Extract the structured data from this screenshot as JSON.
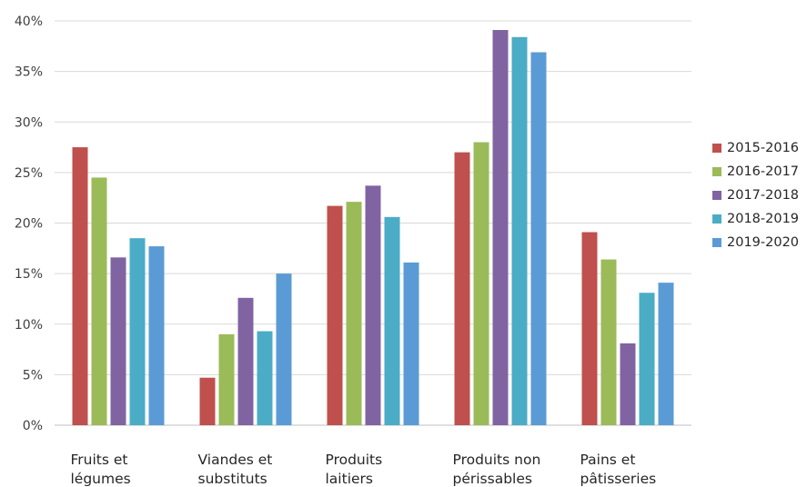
{
  "chart_data": {
    "type": "bar",
    "categories": [
      [
        "Fruits et",
        "légumes"
      ],
      [
        "Viandes et",
        "substituts"
      ],
      [
        "Produits",
        "laitiers"
      ],
      [
        "Produits non",
        "périssables"
      ],
      [
        "Pains et",
        "pâtisseries"
      ]
    ],
    "series": [
      {
        "name": "2015-2016",
        "color": "#c0504d",
        "values": [
          27.5,
          4.7,
          21.7,
          27.0,
          19.1
        ]
      },
      {
        "name": "2016-2017",
        "color": "#9bbb59",
        "values": [
          24.5,
          9.0,
          22.1,
          28.0,
          16.4
        ]
      },
      {
        "name": "2017-2018",
        "color": "#8064a2",
        "values": [
          16.6,
          12.6,
          23.7,
          39.1,
          8.1
        ]
      },
      {
        "name": "2018-2019",
        "color": "#4bacc6",
        "values": [
          18.5,
          9.3,
          20.6,
          38.4,
          13.1
        ]
      },
      {
        "name": "2019-2020",
        "color": "#5b9bd5",
        "values": [
          17.7,
          15.0,
          16.1,
          36.9,
          14.1
        ]
      }
    ],
    "yticks": [
      "0%",
      "5%",
      "10%",
      "15%",
      "20%",
      "25%",
      "30%",
      "35%",
      "40%"
    ],
    "ylim": [
      0,
      40
    ],
    "legend_position": "right",
    "grid": true
  }
}
